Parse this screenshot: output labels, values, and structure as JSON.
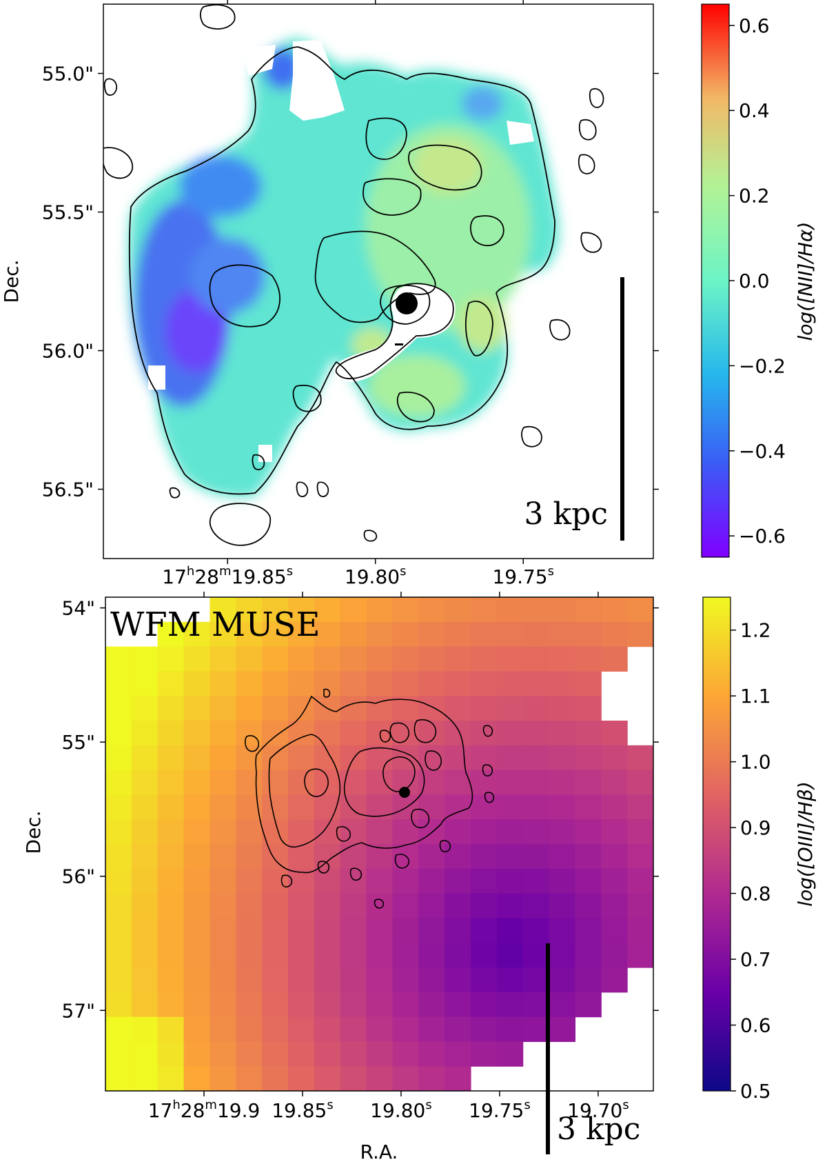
{
  "chart_data": [
    {
      "type": "heatmap",
      "panel": "top",
      "map": "log([NII]/Hα) emission-line ratio map with contours",
      "ylabel": "Dec.",
      "xlabel": "",
      "y_ticks": [
        "55.0\"",
        "55.5\"",
        "56.0\"",
        "56.5\""
      ],
      "y_tick_values": [
        55.0,
        55.5,
        56.0,
        56.5
      ],
      "ylim": [
        54.75,
        56.75
      ],
      "x_ticks": [
        "17h28m19.85s",
        "19.80s",
        "19.75s"
      ],
      "x_tick_parts": [
        {
          "a": "17",
          "b": "h",
          "c": "28",
          "d": "m",
          "e": "19.85",
          "f": "s"
        },
        {
          "a": "",
          "b": "",
          "c": "",
          "d": "",
          "e": "19.80",
          "f": "s"
        },
        {
          "a": "",
          "b": "",
          "c": "",
          "d": "",
          "e": "19.75",
          "f": "s"
        }
      ],
      "x_tick_values": [
        19.85,
        19.8,
        19.75
      ],
      "xlim": [
        19.892,
        19.706
      ],
      "colorbar": {
        "label": "log([NII]/Hα)",
        "ticks": [
          "0.6",
          "0.4",
          "0.2",
          "0.0",
          "−0.2",
          "−0.4",
          "−0.6"
        ],
        "tick_values": [
          0.6,
          0.4,
          0.2,
          0.0,
          -0.2,
          -0.4,
          -0.6
        ],
        "range": [
          -0.65,
          0.65
        ],
        "colormap": "rainbow",
        "colors": [
          "#8000ff",
          "#3b5cf6",
          "#26b7ec",
          "#6cf4c6",
          "#b2f396",
          "#f2b867",
          "#ff0000"
        ]
      },
      "scale_bar": "3 kpc",
      "marker": "black filled circle at nucleus"
    },
    {
      "type": "heatmap",
      "panel": "bottom",
      "map": "log([OIII]/Hβ) emission-line ratio map (coarse pixels) with contours",
      "annotation": "WFM MUSE",
      "ylabel": "Dec.",
      "xlabel": "R.A.",
      "y_ticks": [
        "54\"",
        "55\"",
        "56\"",
        "57\""
      ],
      "y_tick_values": [
        54,
        55,
        56,
        57
      ],
      "ylim": [
        53.92,
        57.6
      ],
      "x_ticks": [
        "17h28m19.9",
        "19.85s",
        "19.80s",
        "19.75s",
        "19.70s"
      ],
      "x_tick_parts": [
        {
          "a": "17",
          "b": "h",
          "c": "28",
          "d": "m",
          "e": "19.9",
          "f": ""
        },
        {
          "a": "",
          "b": "",
          "c": "",
          "d": "",
          "e": "19.85",
          "f": "s"
        },
        {
          "a": "",
          "b": "",
          "c": "",
          "d": "",
          "e": "19.80",
          "f": "s"
        },
        {
          "a": "",
          "b": "",
          "c": "",
          "d": "",
          "e": "19.75",
          "f": "s"
        },
        {
          "a": "",
          "b": "",
          "c": "",
          "d": "",
          "e": "19.70",
          "f": "s"
        }
      ],
      "x_tick_values": [
        19.9,
        19.85,
        19.8,
        19.75,
        19.7
      ],
      "xlim": [
        19.95,
        19.672
      ],
      "colorbar": {
        "label": "log([OIII]/Hβ)",
        "ticks": [
          "1.2",
          "1.1",
          "1.0",
          "0.9",
          "0.8",
          "0.7",
          "0.6",
          "0.5"
        ],
        "tick_values": [
          1.2,
          1.1,
          1.0,
          0.9,
          0.8,
          0.7,
          0.6,
          0.5
        ],
        "range": [
          0.5,
          1.25
        ],
        "colormap": "plasma",
        "colors": [
          "#0d0887",
          "#6a00a8",
          "#b12a90",
          "#e16462",
          "#fca636",
          "#f0f921"
        ]
      },
      "scale_bar": "3 kpc",
      "marker": "black filled circle at nucleus"
    }
  ]
}
